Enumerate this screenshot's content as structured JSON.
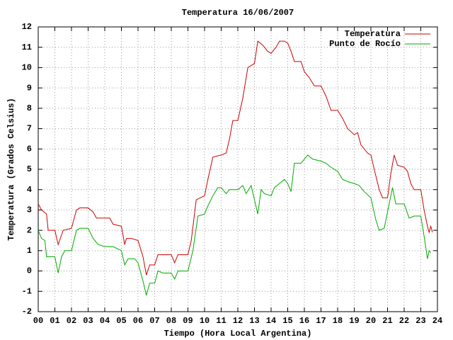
{
  "chart_data": {
    "type": "line",
    "title": "Temperatura 16/06/2007",
    "x_label": "Tiempo (Hora Local Argentina)",
    "y_label": "Temperatura (Grados Celsius)",
    "xlim": [
      0,
      24
    ],
    "ylim": [
      -2,
      12
    ],
    "xticks": [
      {
        "value": 0,
        "label": "00"
      },
      {
        "value": 1,
        "label": "01"
      },
      {
        "value": 2,
        "label": "02"
      },
      {
        "value": 3,
        "label": "03"
      },
      {
        "value": 4,
        "label": "04"
      },
      {
        "value": 5,
        "label": "05"
      },
      {
        "value": 6,
        "label": "06"
      },
      {
        "value": 7,
        "label": "07"
      },
      {
        "value": 8,
        "label": "08"
      },
      {
        "value": 9,
        "label": "09"
      },
      10,
      11,
      12,
      13,
      14,
      15,
      16,
      17,
      18,
      19,
      20,
      21,
      22,
      23,
      24
    ],
    "yticks": [
      -2,
      -1,
      0,
      1,
      2,
      3,
      4,
      5,
      6,
      7,
      8,
      9,
      10,
      11,
      12
    ],
    "grid": true,
    "legend": "top-right",
    "series": [
      {
        "name": "Temperatura",
        "color": "#cc0000",
        "x": [
          0,
          0.2,
          0.5,
          0.6,
          1.0,
          1.2,
          1.5,
          2.0,
          2.3,
          2.5,
          3.0,
          3.3,
          3.5,
          4.0,
          4.3,
          4.5,
          5.0,
          5.2,
          5.3,
          5.6,
          6.0,
          6.3,
          6.5,
          6.7,
          7.0,
          7.2,
          7.5,
          8.0,
          8.2,
          8.4,
          9.0,
          9.2,
          9.5,
          10.0,
          10.2,
          10.5,
          11.0,
          11.3,
          11.5,
          11.7,
          12.0,
          12.3,
          12.6,
          13.0,
          13.2,
          13.5,
          13.8,
          14.0,
          14.3,
          14.5,
          14.8,
          15.0,
          15.2,
          15.4,
          15.8,
          16.0,
          16.3,
          16.6,
          17.0,
          17.3,
          17.6,
          18.0,
          18.3,
          18.6,
          19.0,
          19.2,
          19.4,
          19.8,
          20.0,
          20.2,
          20.5,
          20.7,
          21.0,
          21.2,
          21.4,
          21.6,
          22.0,
          22.2,
          22.4,
          22.6,
          23.0,
          23.2,
          23.4,
          23.5,
          23.6,
          23.7
        ],
        "values": [
          3.3,
          3.0,
          2.8,
          2.0,
          2.0,
          1.3,
          2.0,
          2.1,
          3.0,
          3.1,
          3.1,
          2.9,
          2.6,
          2.6,
          2.6,
          2.3,
          2.2,
          1.3,
          1.6,
          1.6,
          1.5,
          0.7,
          -0.2,
          0.3,
          0.3,
          0.8,
          0.8,
          0.8,
          0.4,
          0.8,
          0.8,
          1.5,
          3.5,
          3.7,
          4.5,
          5.6,
          5.7,
          5.8,
          6.5,
          7.4,
          7.4,
          8.5,
          10.0,
          10.2,
          11.3,
          11.1,
          10.8,
          10.7,
          11.0,
          11.3,
          11.3,
          11.2,
          10.8,
          10.3,
          10.3,
          9.8,
          9.5,
          9.1,
          9.1,
          8.6,
          7.9,
          7.9,
          7.5,
          7.0,
          6.7,
          6.8,
          6.2,
          5.8,
          5.7,
          5.0,
          4.0,
          3.6,
          3.6,
          4.8,
          5.7,
          5.2,
          5.1,
          4.9,
          4.3,
          4.0,
          4.0,
          3.0,
          2.2,
          1.9,
          2.2,
          1.9
        ]
      },
      {
        "name": "Punto de Rocío",
        "color": "#00aa00",
        "x": [
          0,
          0.2,
          0.4,
          0.5,
          1.0,
          1.2,
          1.4,
          1.6,
          2.0,
          2.3,
          2.5,
          3.0,
          3.3,
          3.6,
          4.0,
          4.5,
          5.0,
          5.2,
          5.4,
          5.8,
          6.0,
          6.3,
          6.5,
          6.7,
          7.0,
          7.2,
          7.5,
          8.0,
          8.2,
          8.4,
          9.0,
          9.3,
          9.6,
          10.0,
          10.2,
          10.5,
          10.8,
          11.0,
          11.3,
          11.5,
          12.0,
          12.3,
          12.5,
          12.8,
          13.0,
          13.2,
          13.4,
          13.6,
          14.0,
          14.2,
          14.5,
          14.8,
          15.0,
          15.2,
          15.4,
          15.8,
          16.0,
          16.2,
          16.5,
          17.0,
          17.3,
          17.6,
          18.0,
          18.3,
          18.6,
          19.0,
          19.3,
          19.6,
          20.0,
          20.3,
          20.5,
          20.8,
          21.0,
          21.3,
          21.5,
          22.0,
          22.3,
          22.6,
          23.0,
          23.2,
          23.4,
          23.5,
          23.6
        ],
        "values": [
          2.0,
          1.6,
          1.5,
          0.7,
          0.7,
          -0.1,
          0.7,
          1.0,
          1.0,
          2.0,
          2.1,
          2.1,
          1.6,
          1.3,
          1.2,
          1.2,
          1.0,
          0.3,
          0.6,
          0.6,
          0.4,
          -0.5,
          -1.2,
          -0.6,
          -0.6,
          0.0,
          -0.1,
          -0.1,
          -0.4,
          0.0,
          0.0,
          1.0,
          2.7,
          2.8,
          3.2,
          3.7,
          4.1,
          4.1,
          3.8,
          4.0,
          4.0,
          4.2,
          3.8,
          4.2,
          3.5,
          2.8,
          4.0,
          3.8,
          3.7,
          4.1,
          4.3,
          4.5,
          4.3,
          3.9,
          5.3,
          5.3,
          5.5,
          5.7,
          5.5,
          5.4,
          5.3,
          5.1,
          4.9,
          4.5,
          4.4,
          4.3,
          4.2,
          3.9,
          3.6,
          2.5,
          2.0,
          2.1,
          2.9,
          4.1,
          3.3,
          3.3,
          2.6,
          2.7,
          2.7,
          1.7,
          0.6,
          1.0,
          0.9
        ]
      }
    ]
  }
}
